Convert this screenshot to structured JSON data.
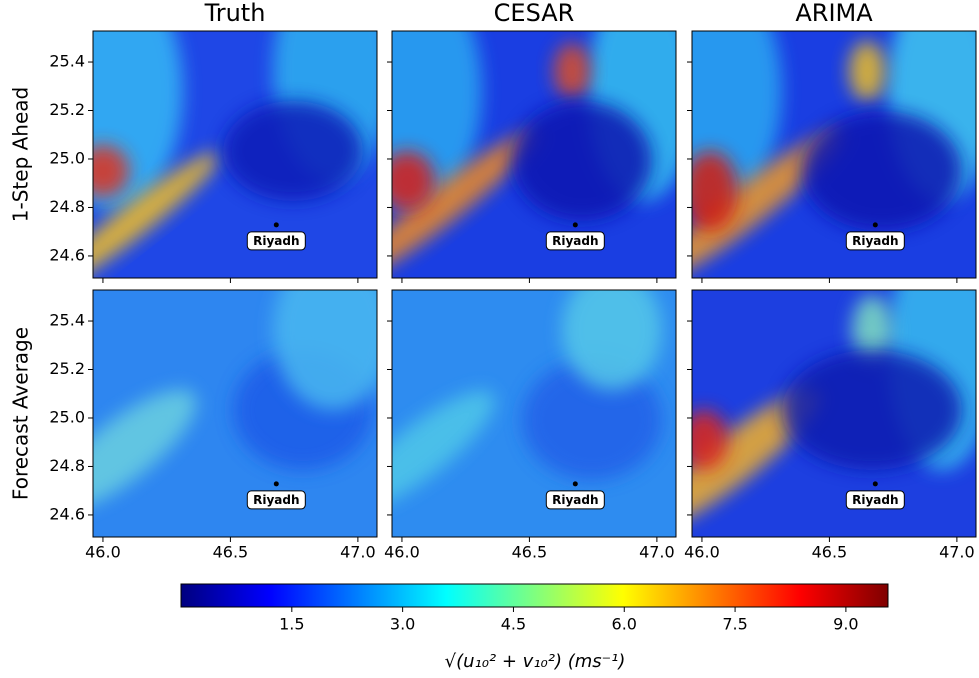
{
  "chart_data": {
    "type": "heatmap",
    "columns": [
      "Truth",
      "CESAR",
      "ARIMA"
    ],
    "rows": [
      "1-Step Ahead",
      "Forecast Average"
    ],
    "xlim": [
      45.961,
      47.075
    ],
    "xticks": [
      {
        "value": 46,
        "label": "46.0"
      },
      {
        "value": 46.5,
        "label": "46.5"
      },
      {
        "value": 47,
        "label": "47.0"
      }
    ],
    "ylim": [
      24.509,
      25.528
    ],
    "yticks": [
      24.6,
      24.8,
      {
        "value": 25,
        "label": "25.0"
      },
      25.2,
      25.4
    ],
    "annotation": {
      "text": "Riyadh",
      "x": 46.68,
      "y": 24.728
    },
    "colorbar": {
      "label": "√(u₁₀² + v₁₀²)  (ms⁻¹)",
      "colormap": "jet",
      "lim": [
        0,
        9.57
      ],
      "ticks": [
        1.5,
        {
          "value": 3,
          "label": "3.0"
        },
        4.5,
        {
          "value": 6,
          "label": "6.0"
        },
        7.5,
        {
          "value": 9,
          "label": "9.0"
        }
      ]
    }
  }
}
